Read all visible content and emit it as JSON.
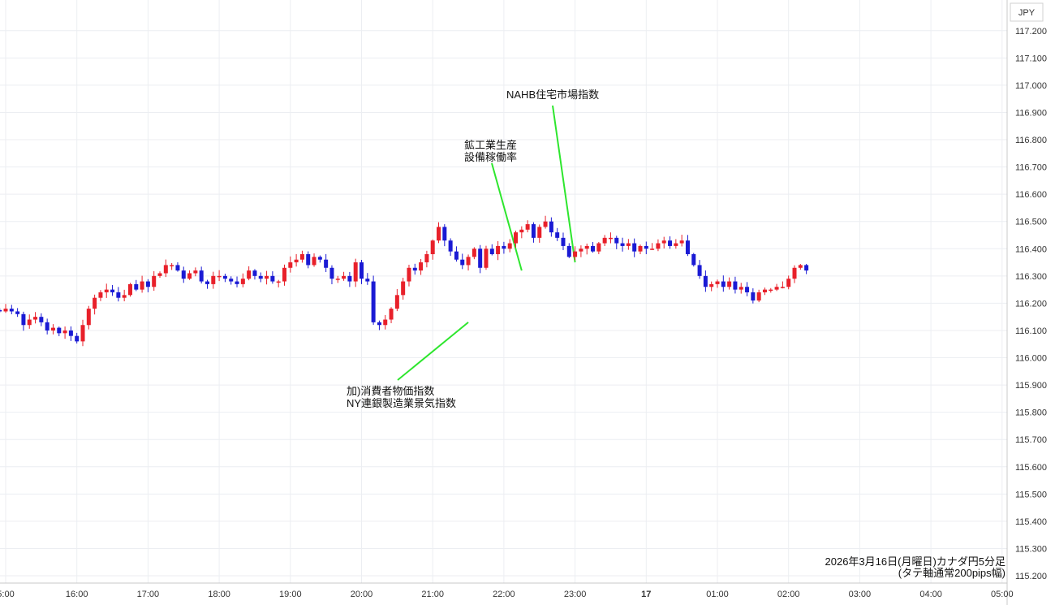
{
  "chart_data": {
    "type": "candlestick",
    "currency": "JPY",
    "ylim": [
      115.2,
      117.27
    ],
    "y_ticks": [
      "115.200",
      "115.300",
      "115.400",
      "115.500",
      "115.600",
      "115.700",
      "115.800",
      "115.900",
      "116.000",
      "116.100",
      "116.200",
      "116.300",
      "116.400",
      "116.500",
      "116.600",
      "116.700",
      "116.800",
      "116.900",
      "117.000",
      "117.100",
      "117.200"
    ],
    "x_ticks": [
      {
        "label": "5:00",
        "hour": 15,
        "bold": false
      },
      {
        "label": "16:00",
        "hour": 16,
        "bold": false
      },
      {
        "label": "17:00",
        "hour": 17,
        "bold": false
      },
      {
        "label": "18:00",
        "hour": 18,
        "bold": false
      },
      {
        "label": "19:00",
        "hour": 19,
        "bold": false
      },
      {
        "label": "20:00",
        "hour": 20,
        "bold": false
      },
      {
        "label": "21:00",
        "hour": 21,
        "bold": false
      },
      {
        "label": "22:00",
        "hour": 22,
        "bold": false
      },
      {
        "label": "23:00",
        "hour": 23,
        "bold": false
      },
      {
        "label": "17",
        "hour": 24,
        "bold": true
      },
      {
        "label": "01:00",
        "hour": 25,
        "bold": false
      },
      {
        "label": "02:00",
        "hour": 26,
        "bold": false
      },
      {
        "label": "03:00",
        "hour": 27,
        "bold": false
      },
      {
        "label": "04:00",
        "hour": 28,
        "bold": false
      },
      {
        "label": "05:00",
        "hour": 29,
        "bold": false
      }
    ],
    "grid": true,
    "up_color": "#e8202a",
    "down_color": "#1a1ad4",
    "annotation_line_color": "#2ee62e",
    "annotations": [
      {
        "lines": [
          "加)消費者物価指数",
          "NY連銀製造業景気指数"
        ],
        "hour": 21.5,
        "price": 116.13
      },
      {
        "lines": [
          "鉱工業生産",
          "設備稼働率"
        ],
        "hour": 22.25,
        "price": 116.32
      },
      {
        "lines": [
          "NAHB住宅市場指数"
        ],
        "hour": 23.0,
        "price": 116.35
      }
    ],
    "caption": [
      "2026年3月16日(月曜日)カナダ円5分足",
      "(タテ軸通常200pips幅)"
    ],
    "series_start_hour": 14.9167,
    "candle_minutes": 5,
    "closes": [
      116.17,
      116.18,
      116.17,
      116.16,
      116.12,
      116.14,
      116.15,
      116.13,
      116.1,
      116.11,
      116.09,
      116.1,
      116.08,
      116.06,
      116.12,
      116.18,
      116.22,
      116.24,
      116.25,
      116.24,
      116.22,
      116.23,
      116.27,
      116.25,
      116.28,
      116.26,
      116.3,
      116.31,
      116.34,
      116.34,
      116.32,
      116.29,
      116.31,
      116.32,
      116.28,
      116.27,
      116.3,
      116.3,
      116.29,
      116.28,
      116.27,
      116.29,
      116.32,
      116.3,
      116.29,
      116.3,
      116.28,
      116.28,
      116.33,
      116.35,
      116.36,
      116.38,
      116.34,
      116.37,
      116.36,
      116.33,
      116.29,
      116.29,
      116.3,
      116.28,
      116.35,
      116.29,
      116.28,
      116.13,
      116.12,
      116.14,
      116.18,
      116.23,
      116.28,
      116.33,
      116.32,
      116.35,
      116.38,
      116.43,
      116.48,
      116.43,
      116.39,
      116.36,
      116.34,
      116.37,
      116.4,
      116.33,
      116.4,
      116.38,
      116.41,
      116.4,
      116.42,
      116.46,
      116.47,
      116.49,
      116.44,
      116.48,
      116.5,
      116.46,
      116.44,
      116.41,
      116.37,
      116.39,
      116.4,
      116.41,
      116.39,
      116.42,
      116.44,
      116.44,
      116.42,
      116.41,
      116.42,
      116.39,
      116.41,
      116.4,
      116.4,
      116.42,
      116.43,
      116.41,
      116.42,
      116.43,
      116.38,
      116.34,
      116.3,
      116.26,
      116.27,
      116.28,
      116.26,
      116.28,
      116.25,
      116.26,
      116.24,
      116.21,
      116.24,
      116.25,
      116.25,
      116.26,
      116.26,
      116.29,
      116.33,
      116.34,
      116.32
    ],
    "title": "",
    "xlabel": "",
    "ylabel": ""
  }
}
